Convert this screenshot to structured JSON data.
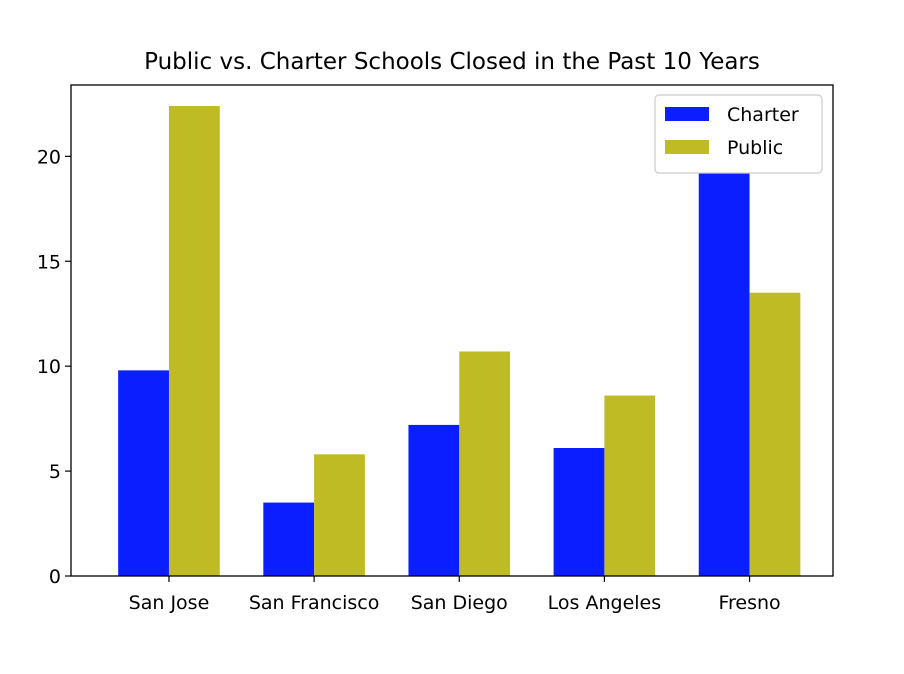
{
  "chart_data": {
    "type": "bar",
    "title": "Public vs. Charter Schools Closed in the Past 10 Years",
    "xlabel": "",
    "ylabel": "",
    "categories": [
      "San Jose",
      "San Francisco",
      "San Diego",
      "Los Angeles",
      "Fresno"
    ],
    "series": [
      {
        "name": "Charter",
        "color": "#0a1eff",
        "values": [
          9.8,
          3.5,
          7.2,
          6.1,
          19.2
        ]
      },
      {
        "name": "Public",
        "color": "#bfbb24",
        "values": [
          22.4,
          5.8,
          10.7,
          8.6,
          13.5
        ]
      }
    ],
    "ylim": [
      0,
      23.4
    ],
    "yticks": [
      0,
      5,
      10,
      15,
      20
    ],
    "grid": false,
    "legend": "upper right"
  }
}
